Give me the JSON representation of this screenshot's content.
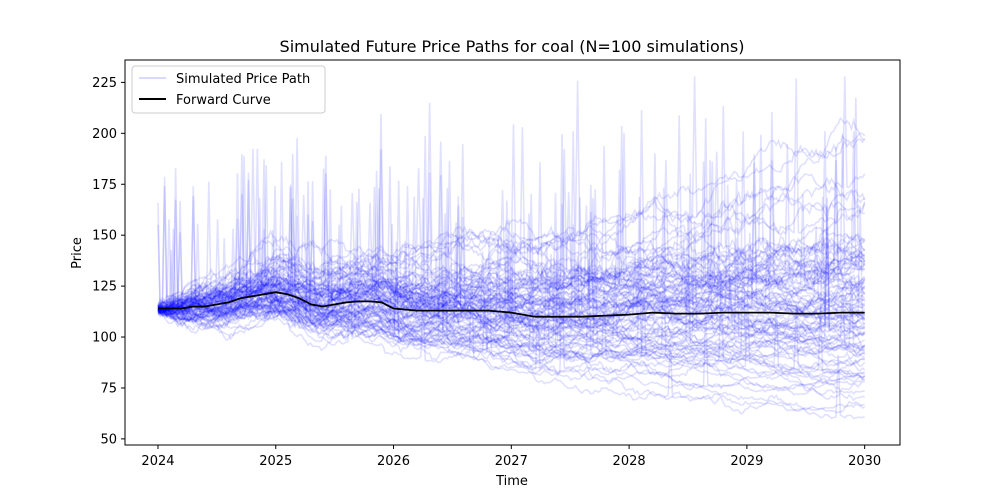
{
  "chart_data": {
    "type": "line",
    "title": "Simulated Future Price Paths for coal (N=100 simulations)",
    "xlabel": "Time",
    "ylabel": "Price",
    "xlim": [
      2023.72,
      2030.3
    ],
    "ylim": [
      47,
      236
    ],
    "x_ticks": [
      "2024",
      "2025",
      "2026",
      "2027",
      "2028",
      "2029",
      "2030"
    ],
    "x_tick_values": [
      2024,
      2025,
      2026,
      2027,
      2028,
      2029,
      2030
    ],
    "y_ticks": [
      "50",
      "75",
      "100",
      "125",
      "150",
      "175",
      "200",
      "225"
    ],
    "y_tick_values": [
      50,
      75,
      100,
      125,
      150,
      175,
      200,
      225
    ],
    "grid": false,
    "legend_placement": "top-left",
    "legend": [
      {
        "label": "Simulated Price Path",
        "color": "#0000ff"
      },
      {
        "label": "Forward Curve",
        "color": "#000000"
      }
    ],
    "series": [
      {
        "name": "Forward Curve",
        "color": "#000000",
        "x": [
          2024.0,
          2024.1,
          2024.2,
          2024.3,
          2024.4,
          2024.5,
          2024.6,
          2024.7,
          2024.8,
          2024.9,
          2025.0,
          2025.1,
          2025.2,
          2025.3,
          2025.4,
          2025.5,
          2025.6,
          2025.7,
          2025.8,
          2025.9,
          2026.0,
          2026.2,
          2026.4,
          2026.6,
          2026.8,
          2027.0,
          2027.2,
          2027.4,
          2027.6,
          2027.8,
          2028.0,
          2028.2,
          2028.4,
          2028.6,
          2028.8,
          2029.0,
          2029.2,
          2029.4,
          2029.6,
          2029.8,
          2030.0
        ],
        "values": [
          114,
          114,
          114,
          115,
          115,
          116,
          117,
          119,
          120,
          121,
          122,
          121,
          119,
          116,
          115,
          116,
          117,
          117.5,
          117.5,
          117,
          114,
          113,
          113,
          113,
          113,
          112,
          110,
          110,
          110,
          110.5,
          111,
          112,
          111.5,
          111.5,
          112,
          112,
          112,
          111.5,
          111.5,
          112,
          112
        ]
      },
      {
        "name": "Simulated Price Path",
        "color": "#0000ff",
        "opacity": 0.12,
        "count": 100,
        "start_value": 115,
        "end_range": [
          62,
          205
        ]
      }
    ]
  }
}
